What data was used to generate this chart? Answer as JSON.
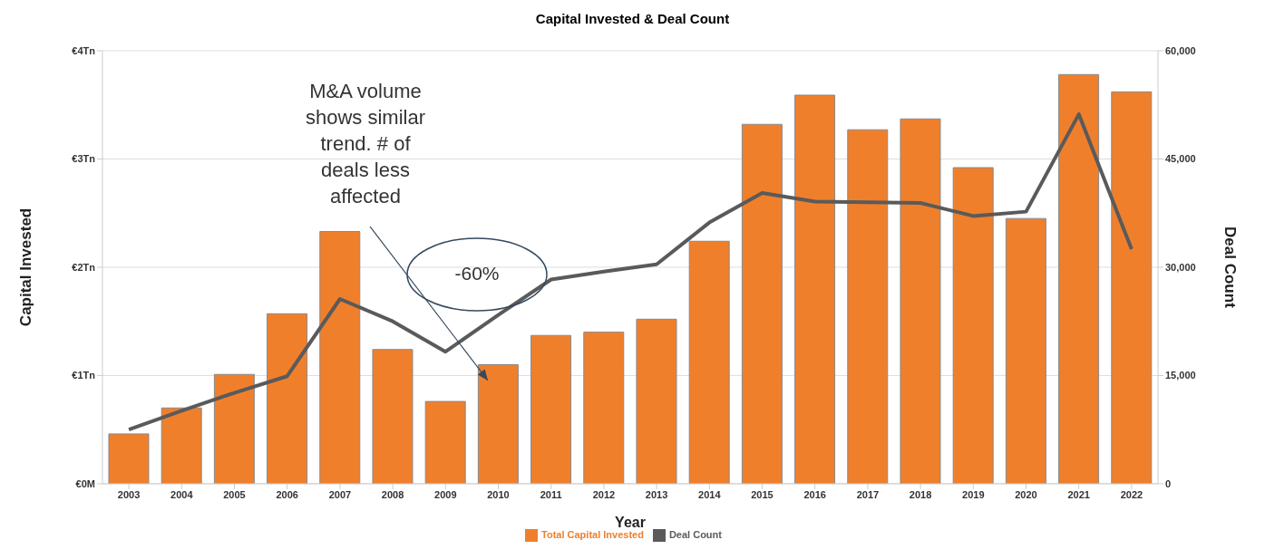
{
  "chart_data": {
    "type": "bar",
    "title": "Capital Invested & Deal Count",
    "xlabel": "Year",
    "ylabel": "Capital Invested",
    "y2label": "Deal Count",
    "categories": [
      "2003",
      "2004",
      "2005",
      "2006",
      "2007",
      "2008",
      "2009",
      "2010",
      "2011",
      "2012",
      "2013",
      "2014",
      "2015",
      "2016",
      "2017",
      "2018",
      "2019",
      "2020",
      "2021",
      "2022"
    ],
    "series": [
      {
        "name": "Total Capital Invested",
        "color": "#f07f2c",
        "values": [
          0.46,
          0.7,
          1.01,
          1.57,
          2.33,
          1.24,
          0.76,
          1.1,
          1.37,
          1.4,
          1.52,
          2.24,
          3.32,
          3.59,
          3.27,
          3.37,
          2.92,
          2.45,
          3.78,
          3.62
        ]
      },
      {
        "name": "Deal Count",
        "type": "line",
        "axis": "y2",
        "color": "#5a5a5a",
        "values": [
          7500,
          10100,
          12600,
          14900,
          25600,
          22500,
          18300,
          23400,
          28300,
          29400,
          30400,
          36200,
          40300,
          39100,
          39000,
          38900,
          37100,
          37700,
          51200,
          32500
        ]
      }
    ],
    "ylim": [
      0,
      4
    ],
    "yticks": [
      {
        "value": 0,
        "label": "€0M"
      },
      {
        "value": 1,
        "label": "€1Tn"
      },
      {
        "value": 2,
        "label": "€2Tn"
      },
      {
        "value": 3,
        "label": "€3Tn"
      },
      {
        "value": 4,
        "label": "€4Tn"
      }
    ],
    "y2lim": [
      0,
      60000
    ],
    "y2ticks": [
      0,
      {
        "value": 15000,
        "label": "15,000"
      },
      {
        "value": 30000,
        "label": "30,000"
      },
      {
        "value": 45000,
        "label": "45,000"
      },
      {
        "value": 60000,
        "label": "60,000"
      }
    ],
    "grid": "y",
    "legend": "bottom",
    "marker": "none",
    "line_style": "solid",
    "annotations": [
      "M&A volume shows similar trend. # of deals less affected",
      "-60%"
    ]
  }
}
